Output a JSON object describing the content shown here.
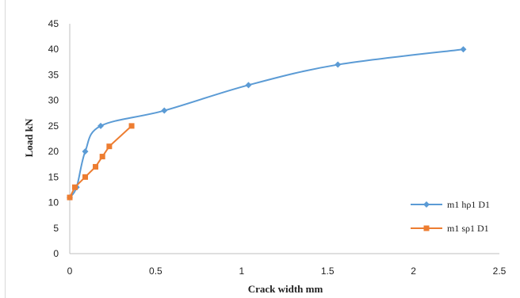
{
  "chart_data": {
    "type": "line",
    "title": "",
    "xlabel": "Crack width mm",
    "ylabel": "Load kN",
    "xlim": [
      0,
      2.5
    ],
    "ylim": [
      0,
      45
    ],
    "xticks": [
      0,
      0.5,
      1,
      1.5,
      2,
      2.5
    ],
    "yticks": [
      0,
      5,
      10,
      15,
      20,
      25,
      30,
      35,
      40,
      45
    ],
    "grid": false,
    "legend_position": "bottom-right",
    "series": [
      {
        "name": "m1 hρ1 D1",
        "color": "#5b9bd5",
        "marker": "diamond",
        "smooth": true,
        "x": [
          0.0,
          0.04,
          0.09,
          0.18,
          0.55,
          1.04,
          1.56,
          2.29
        ],
        "y": [
          11,
          13,
          20,
          25,
          28,
          33,
          37,
          40
        ]
      },
      {
        "name": "m1 sρ1 D1",
        "color": "#ed7d31",
        "marker": "square",
        "smooth": false,
        "x": [
          0.0,
          0.03,
          0.09,
          0.15,
          0.19,
          0.23,
          0.36
        ],
        "y": [
          11,
          13,
          15,
          17,
          19,
          21,
          25
        ]
      }
    ]
  }
}
